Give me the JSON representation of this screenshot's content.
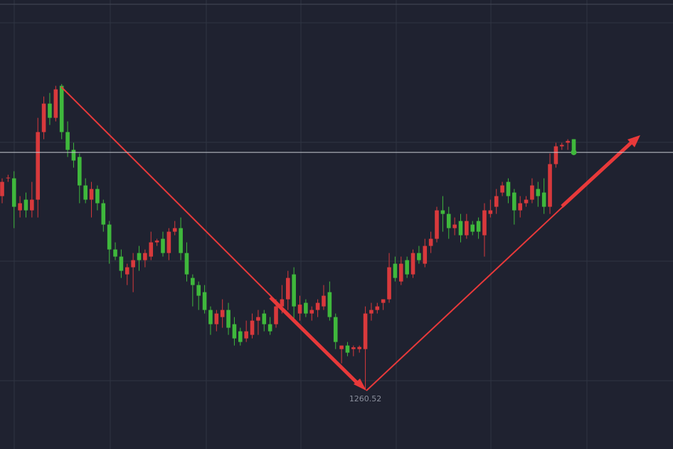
{
  "chart_data": {
    "type": "candlestick",
    "up_color": "#d8393c",
    "down_color": "#3fb83c",
    "ylim": [
      1243.92,
      1370.12
    ],
    "low_label": 1260.52,
    "open": [
      1315,
      1320,
      1320,
      1311,
      1314,
      1311,
      1314,
      1333,
      1341,
      1337,
      1346,
      1333,
      1328,
      1326,
      1318,
      1314,
      1317,
      1313,
      1307,
      1300,
      1298,
      1293,
      1295,
      1299,
      1297,
      1298,
      1302,
      1303,
      1299,
      1305,
      1306,
      1299,
      1292,
      1290,
      1288,
      1283,
      1279,
      1281,
      1283,
      1279,
      1277,
      1275,
      1276,
      1280,
      1282,
      1279,
      1279,
      1284,
      1286,
      1293,
      1282,
      1285,
      1282,
      1283,
      1284,
      1288,
      1281,
      1272,
      1273,
      1272,
      1272,
      1272,
      1282,
      1283,
      1285,
      1286,
      1296,
      1291,
      1297,
      1293,
      1299,
      1296,
      1301,
      1303,
      1311,
      1310,
      1306,
      1308,
      1304,
      1307,
      1308,
      1304,
      1310,
      1312,
      1316,
      1319,
      1316,
      1311,
      1313,
      1314,
      1317,
      1316,
      1312,
      1324,
      1329,
      1330,
      1331
    ],
    "high": [
      1320,
      1321,
      1322,
      1315,
      1316,
      1319,
      1337,
      1343,
      1344,
      1346,
      1346.5,
      1336,
      1330,
      1327,
      1320,
      1319,
      1318,
      1314,
      1308,
      1302,
      1300,
      1296,
      1299,
      1301,
      1300,
      1305,
      1303,
      1305,
      1306,
      1308,
      1309,
      1302,
      1293,
      1291,
      1290,
      1284,
      1283,
      1286,
      1285,
      1281,
      1278,
      1280,
      1282,
      1283,
      1283,
      1281,
      1286,
      1290,
      1294,
      1295,
      1287,
      1286,
      1284,
      1286,
      1290,
      1291,
      1282,
      1273,
      1274,
      1273,
      1273,
      1284,
      1285,
      1285,
      1286,
      1299,
      1298,
      1298,
      1298,
      1300,
      1301,
      1303,
      1305,
      1312,
      1315,
      1312,
      1309,
      1310,
      1310,
      1308,
      1309,
      1313,
      1314,
      1317,
      1319,
      1320,
      1317,
      1315,
      1315,
      1320,
      1319,
      1320,
      1327,
      1330,
      1330,
      1331,
      1331
    ],
    "low": [
      1313,
      1319,
      1306,
      1309,
      1309,
      1309,
      1309,
      1331,
      1335,
      1336,
      1331,
      1326,
      1323,
      1313,
      1313,
      1309,
      1311,
      1305,
      1296,
      1297,
      1292,
      1290,
      1288,
      1294,
      1295,
      1297,
      1301,
      1298,
      1297,
      1304,
      1297,
      1291,
      1284,
      1283,
      1282,
      1276,
      1277,
      1278,
      1276,
      1273,
      1273,
      1274,
      1275,
      1276,
      1277,
      1276,
      1278,
      1282,
      1283,
      1280,
      1280,
      1281,
      1280,
      1281,
      1283,
      1280,
      1272,
      1268,
      1270,
      1270,
      1271,
      1260.52,
      1280,
      1282,
      1283,
      1285,
      1291,
      1290,
      1292,
      1292,
      1296,
      1295,
      1299,
      1302,
      1305,
      1303,
      1304,
      1302,
      1303,
      1304,
      1303,
      1298,
      1309,
      1310,
      1315,
      1313,
      1307,
      1309,
      1312,
      1313,
      1312,
      1310,
      1310,
      1323,
      1328,
      1328,
      1327
    ],
    "close": [
      1319,
      1320.2,
      1312,
      1313,
      1311,
      1314,
      1333,
      1341,
      1337,
      1345,
      1333,
      1328,
      1325,
      1318,
      1314,
      1317,
      1313,
      1307,
      1300,
      1298,
      1294,
      1295,
      1297,
      1297,
      1299,
      1302,
      1302.5,
      1299,
      1305,
      1306,
      1299,
      1293,
      1290,
      1287,
      1283,
      1279,
      1282,
      1283,
      1278,
      1275,
      1274,
      1277,
      1280,
      1281,
      1279,
      1277,
      1284,
      1286,
      1292,
      1284,
      1284.5,
      1282,
      1283,
      1285,
      1287,
      1281,
      1274,
      1273,
      1271,
      1272.5,
      1272.6,
      1282,
      1283,
      1284,
      1286,
      1295,
      1292,
      1296,
      1293,
      1299,
      1297,
      1301,
      1303,
      1311,
      1310,
      1306,
      1307,
      1304,
      1308,
      1305,
      1305,
      1311,
      1311,
      1315,
      1318,
      1315,
      1311,
      1313,
      1314,
      1318,
      1315,
      1312,
      1324,
      1329,
      1329.4,
      1330.5,
      1327.3
    ]
  }
}
